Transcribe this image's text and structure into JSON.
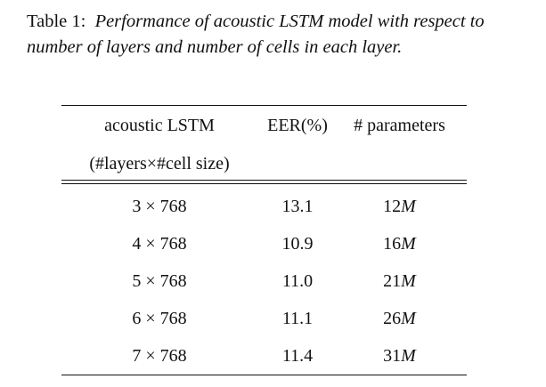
{
  "caption": {
    "label": "Table 1:",
    "text": "Performance of acoustic LSTM model with respect to number of layers and number of cells in each layer."
  },
  "table": {
    "headers": {
      "col1_line1": "acoustic LSTM",
      "col1_line2": "(#layers×#cell size)",
      "col2": "EER(%)",
      "col3": "# parameters"
    },
    "rows": [
      {
        "config": "3 × 768",
        "eer": "13.1",
        "params": "12",
        "unit": "M"
      },
      {
        "config": "4 × 768",
        "eer": "10.9",
        "params": "16",
        "unit": "M"
      },
      {
        "config": "5 × 768",
        "eer": "11.0",
        "params": "21",
        "unit": "M"
      },
      {
        "config": "6 × 768",
        "eer": "11.1",
        "params": "26",
        "unit": "M"
      },
      {
        "config": "7 × 768",
        "eer": "11.4",
        "params": "31",
        "unit": "M"
      }
    ]
  }
}
